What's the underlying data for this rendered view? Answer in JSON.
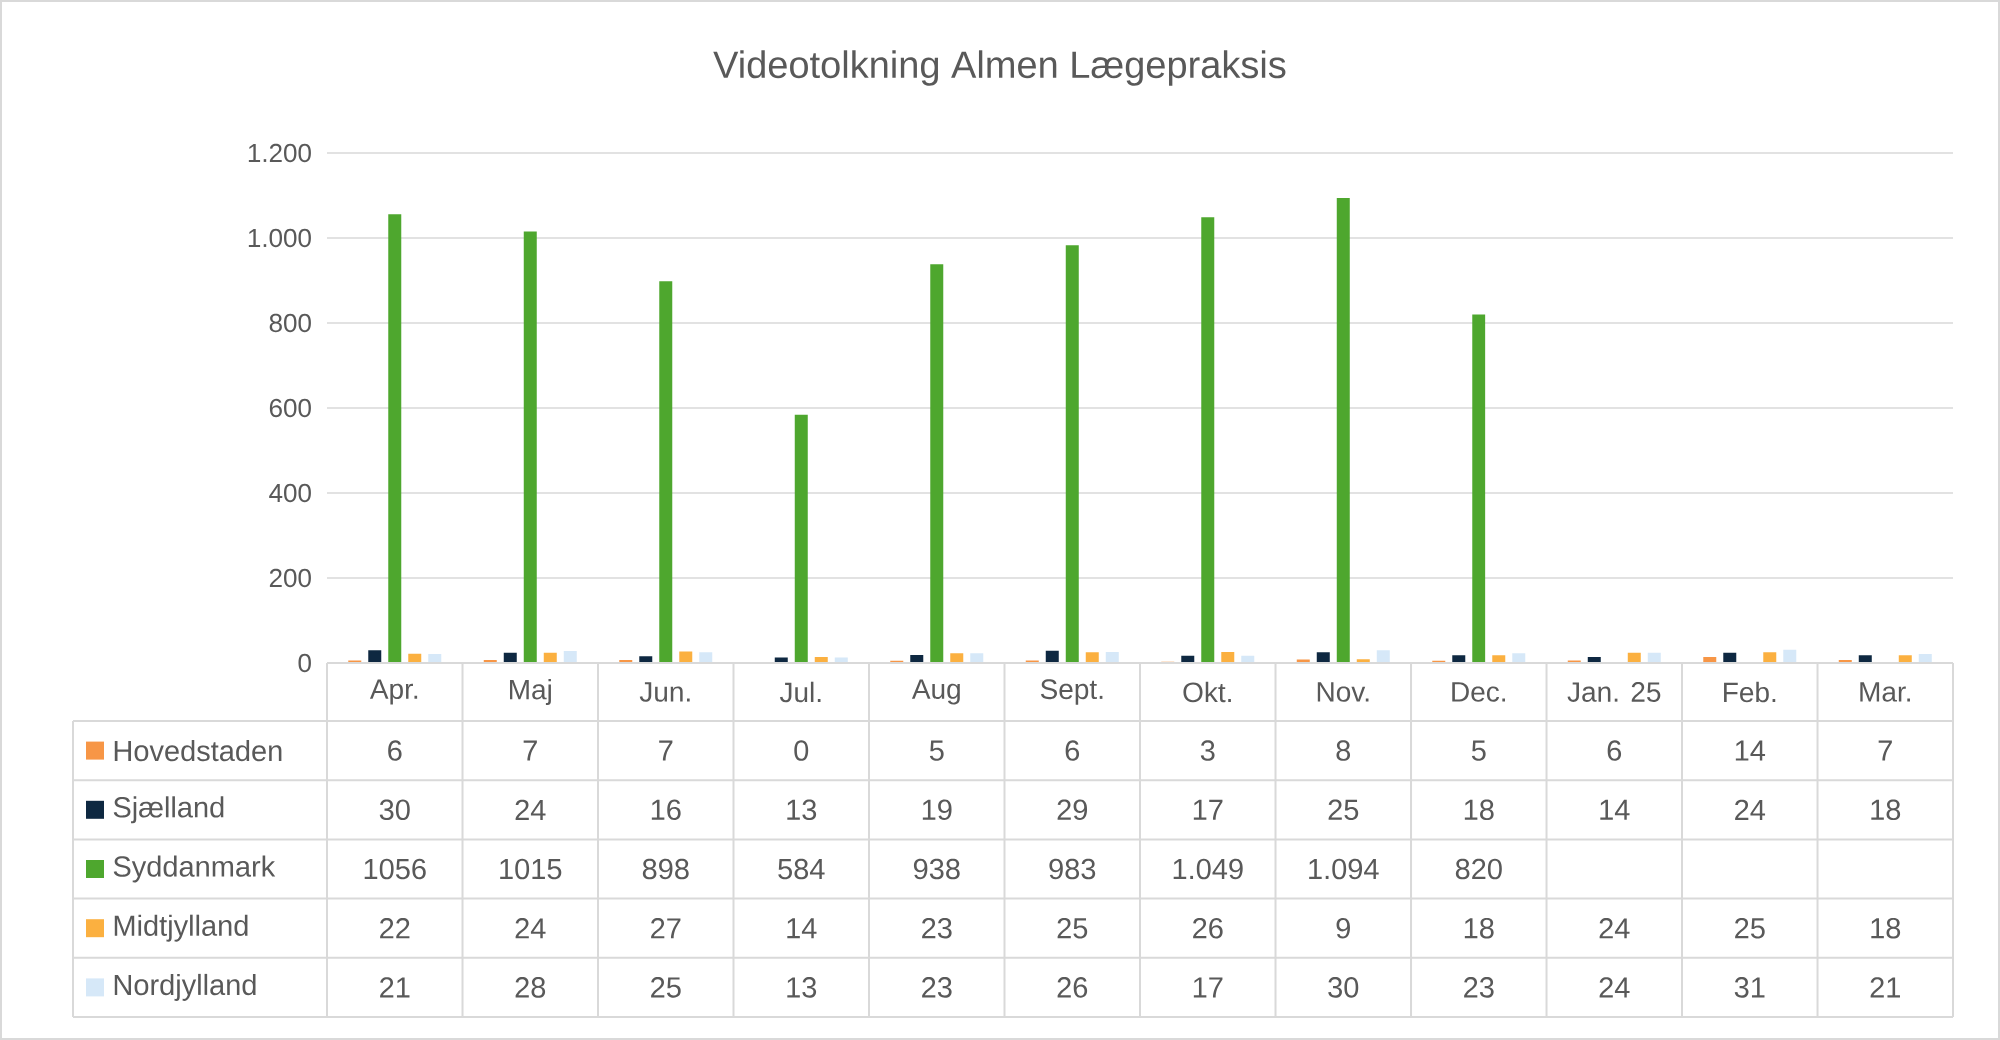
{
  "chart_data": {
    "type": "bar",
    "title": "Videotolkning Almen Lægepraksis",
    "categories": [
      "Apr.",
      "Maj",
      "Jun.",
      "Jul.",
      "Aug",
      "Sept.",
      "Okt.",
      "Nov.",
      "Dec.",
      "Jan. 25",
      "Feb.",
      "Mar."
    ],
    "series": [
      {
        "name": "Hovedstaden",
        "color": "#f79646",
        "values": [
          6,
          7,
          7,
          0,
          5,
          6,
          3,
          8,
          5,
          6,
          14,
          7
        ],
        "value_labels": [
          "6",
          "7",
          "7",
          "0",
          "5",
          "6",
          "3",
          "8",
          "5",
          "6",
          "14",
          "7"
        ]
      },
      {
        "name": "Sjælland",
        "color": "#0e2841",
        "values": [
          30,
          24,
          16,
          13,
          19,
          29,
          17,
          25,
          18,
          14,
          24,
          18
        ],
        "value_labels": [
          "30",
          "24",
          "16",
          "13",
          "19",
          "29",
          "17",
          "25",
          "18",
          "14",
          "24",
          "18"
        ]
      },
      {
        "name": "Syddanmark",
        "color": "#4ea72e",
        "values": [
          1056,
          1015,
          898,
          584,
          938,
          983,
          1049,
          1094,
          820,
          null,
          null,
          null
        ],
        "value_labels": [
          "1056",
          "1015",
          "898",
          "584",
          "938",
          "983",
          "1.049",
          "1.094",
          "820",
          null,
          null,
          null
        ]
      },
      {
        "name": "Midtjylland",
        "color": "#fbb040",
        "values": [
          22,
          24,
          27,
          14,
          23,
          25,
          26,
          9,
          18,
          24,
          25,
          18
        ],
        "value_labels": [
          "22",
          "24",
          "27",
          "14",
          "23",
          "25",
          "26",
          "9",
          "18",
          "24",
          "25",
          "18"
        ]
      },
      {
        "name": "Nordjylland",
        "color": "#d6e8f8",
        "values": [
          21,
          28,
          25,
          13,
          23,
          26,
          17,
          30,
          23,
          24,
          31,
          21
        ],
        "value_labels": [
          "21",
          "28",
          "25",
          "13",
          "23",
          "26",
          "17",
          "30",
          "23",
          "24",
          "31",
          "21"
        ]
      }
    ],
    "ylim": [
      0,
      1200
    ],
    "yticks": [
      0,
      200,
      400,
      600,
      800,
      {
        "value": 1000,
        "label": "1.000"
      },
      {
        "value": 1200,
        "label": "1.200"
      }
    ],
    "grid": "y",
    "legend": "bottom"
  }
}
